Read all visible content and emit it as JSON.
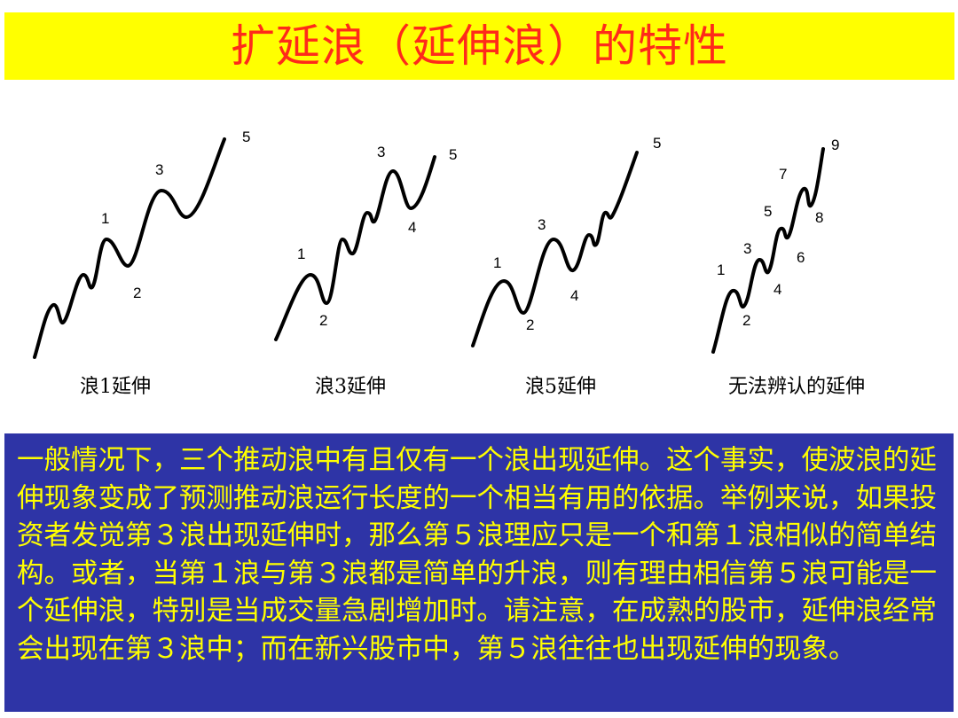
{
  "title": "扩延浪（延伸浪）的特性",
  "colors": {
    "title_bg": "#ffff00",
    "title_text": "#ff2a1a",
    "box_bg": "#2e34a6",
    "box_text": "#ffff00"
  },
  "diagrams": [
    {
      "caption": "浪1延伸",
      "labels": [
        "1",
        "2",
        "3",
        "5"
      ]
    },
    {
      "caption": "浪3延伸",
      "labels": [
        "1",
        "2",
        "3",
        "4",
        "5"
      ]
    },
    {
      "caption": "浪5延伸",
      "labels": [
        "1",
        "2",
        "3",
        "4",
        "5"
      ]
    },
    {
      "caption": "无法辨认的延伸",
      "labels": [
        "1",
        "2",
        "3",
        "4",
        "5",
        "6",
        "7",
        "8",
        "9"
      ]
    }
  ],
  "body_text": "一般情况下，三个推动浪中有且仅有一个浪出现延伸。这个事实，使波浪的延伸现象变成了预测推动浪运行长度的一个相当有用的依据。举例来说，如果投资者发觉第３浪出现延伸时，那么第５浪理应只是一个和第１浪相似的简单结构。或者，当第１浪与第３浪都是简单的升浪，则有理由相信第５浪可能是一个延伸浪，特别是当成交量急剧增加时。请注意，在成熟的股市，延伸浪经常会出现在第３浪中；而在新兴股市中，第５浪往往也出现延伸的现象。"
}
